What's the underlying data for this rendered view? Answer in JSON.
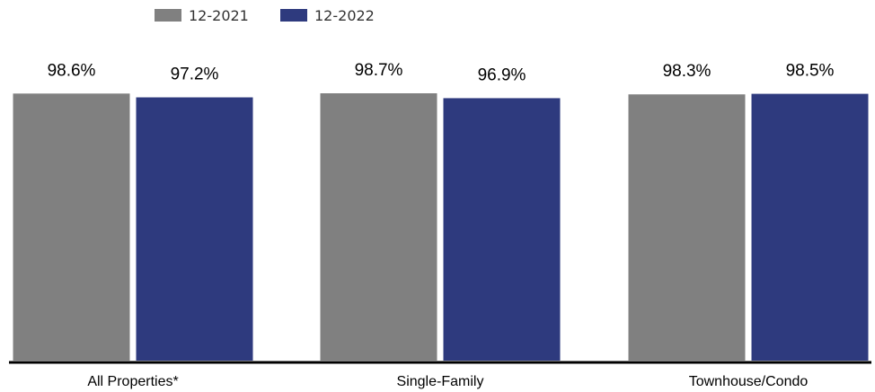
{
  "chart_data": {
    "type": "bar",
    "categories": [
      "All Properties*",
      "Single-Family",
      "Townhouse/Condo"
    ],
    "series": [
      {
        "name": "12-2021",
        "color": "#808080",
        "values": [
          98.6,
          98.7,
          98.3
        ],
        "labels": [
          "98.6%",
          "98.7%",
          "98.3%"
        ]
      },
      {
        "name": "12-2022",
        "color": "#2e3a7e",
        "values": [
          97.2,
          96.9,
          98.5
        ],
        "labels": [
          "97.2%",
          "96.9%",
          "98.5%"
        ]
      }
    ],
    "title": "",
    "xlabel": "",
    "ylabel": "",
    "ylim": [
      0,
      98.7
    ],
    "grid": false,
    "legend": "top-left",
    "axis_color": "#000000"
  }
}
